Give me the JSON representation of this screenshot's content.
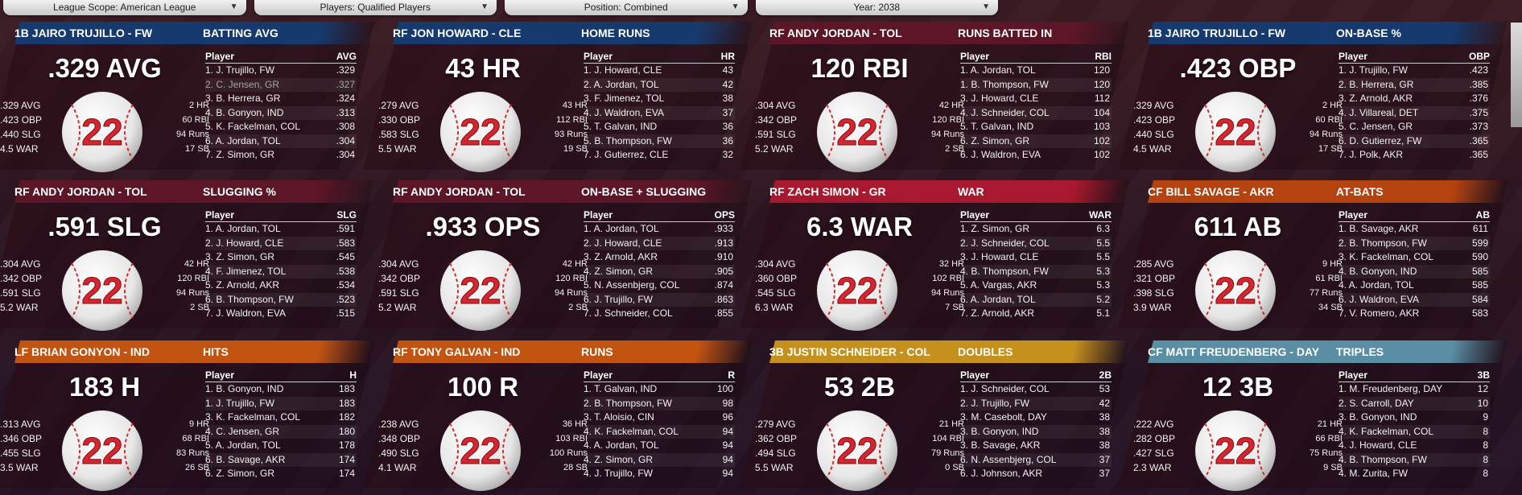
{
  "filters": [
    {
      "label": "League Scope: American League"
    },
    {
      "label": "Players: Qualified Players"
    },
    {
      "label": "Position: Combined"
    },
    {
      "label": "Year: 2038"
    }
  ],
  "panels": [
    {
      "player": "1B JAIRO TRUJILLO - FW",
      "category": "BATTING AVG",
      "header_color": "#163a6e",
      "big": ".329 AVG",
      "jersey": "22",
      "left_stats": [
        ".329 AVG",
        ".423 OBP",
        ".440 SLG",
        "4.5 WAR"
      ],
      "right_stats": [
        "2 HR",
        "60 RBI",
        "94 Runs",
        "17 SB"
      ],
      "col_player": "Player",
      "col_stat": "AVG",
      "rows": [
        {
          "name": "1. J. Trujillo, FW",
          "val": ".329"
        },
        {
          "name": "2. C. Jensen, GR",
          "val": ".327"
        },
        {
          "name": "3. B. Herrera, GR",
          "val": ".324"
        },
        {
          "name": "4. B. Gonyon, IND",
          "val": ".313"
        },
        {
          "name": "5. K. Fackelman, COL",
          "val": ".308"
        },
        {
          "name": "6. A. Jordan, TOL",
          "val": ".304"
        },
        {
          "name": "7. Z. Simon, GR",
          "val": ".304"
        }
      ]
    },
    {
      "player": "RF JON HOWARD - CLE",
      "category": "HOME RUNS",
      "header_color": "#163a6e",
      "big": "43 HR",
      "jersey": "22",
      "left_stats": [
        ".279 AVG",
        ".330 OBP",
        ".583 SLG",
        "5.5 WAR"
      ],
      "right_stats": [
        "43 HR",
        "112 RBI",
        "93 Runs",
        "19 SB"
      ],
      "col_player": "Player",
      "col_stat": "HR",
      "rows": [
        {
          "name": "1. J. Howard, CLE",
          "val": "43"
        },
        {
          "name": "2. A. Jordan, TOL",
          "val": "42"
        },
        {
          "name": "3. F. Jimenez, TOL",
          "val": "38"
        },
        {
          "name": "4. J. Waldron, EVA",
          "val": "37"
        },
        {
          "name": "5. T. Galvan, IND",
          "val": "36"
        },
        {
          "name": "5. B. Thompson, FW",
          "val": "36"
        },
        {
          "name": "7. J. Gutierrez, CLE",
          "val": "32"
        }
      ]
    },
    {
      "player": "RF ANDY JORDAN - TOL",
      "category": "RUNS BATTED IN",
      "header_color": "#5c1628",
      "big": "120 RBI",
      "jersey": "22",
      "left_stats": [
        ".304 AVG",
        ".342 OBP",
        ".591 SLG",
        "5.2 WAR"
      ],
      "right_stats": [
        "42 HR",
        "120 RBI",
        "94 Runs",
        "2 SB"
      ],
      "col_player": "Player",
      "col_stat": "RBI",
      "rows": [
        {
          "name": "1. A. Jordan, TOL",
          "val": "120"
        },
        {
          "name": "1. B. Thompson, FW",
          "val": "120"
        },
        {
          "name": "3. J. Howard, CLE",
          "val": "112"
        },
        {
          "name": "4. J. Schneider, COL",
          "val": "104"
        },
        {
          "name": "5. T. Galvan, IND",
          "val": "103"
        },
        {
          "name": "6. Z. Simon, GR",
          "val": "102"
        },
        {
          "name": "6. J. Waldron, EVA",
          "val": "102"
        }
      ]
    },
    {
      "player": "1B JAIRO TRUJILLO - FW",
      "category": "ON-BASE %",
      "header_color": "#163a6e",
      "big": ".423 OBP",
      "jersey": "22",
      "left_stats": [
        ".329 AVG",
        ".423 OBP",
        ".440 SLG",
        "4.5 WAR"
      ],
      "right_stats": [
        "2 HR",
        "60 RBI",
        "94 Runs",
        "17 SB"
      ],
      "col_player": "Player",
      "col_stat": "OBP",
      "rows": [
        {
          "name": "1. J. Trujillo, FW",
          "val": ".423"
        },
        {
          "name": "2. B. Herrera, GR",
          "val": ".385"
        },
        {
          "name": "3. Z. Arnold, AKR",
          "val": ".376"
        },
        {
          "name": "4. J. Villareal, DET",
          "val": ".375"
        },
        {
          "name": "5. C. Jensen, GR",
          "val": ".373"
        },
        {
          "name": "6. D. Gutierrez, FW",
          "val": ".365"
        },
        {
          "name": "7. J. Polk, AKR",
          "val": ".365"
        }
      ]
    },
    {
      "player": "RF ANDY JORDAN - TOL",
      "category": "SLUGGING %",
      "header_color": "#5c1628",
      "big": ".591 SLG",
      "jersey": "22",
      "left_stats": [
        ".304 AVG",
        ".342 OBP",
        ".591 SLG",
        "5.2 WAR"
      ],
      "right_stats": [
        "42 HR",
        "120 RBI",
        "94 Runs",
        "2 SB"
      ],
      "col_player": "Player",
      "col_stat": "SLG",
      "rows": [
        {
          "name": "1. A. Jordan, TOL",
          "val": ".591"
        },
        {
          "name": "2. J. Howard, CLE",
          "val": ".583"
        },
        {
          "name": "3. Z. Simon, GR",
          "val": ".545"
        },
        {
          "name": "4. F. Jimenez, TOL",
          "val": ".538"
        },
        {
          "name": "5. Z. Arnold, AKR",
          "val": ".534"
        },
        {
          "name": "6. B. Thompson, FW",
          "val": ".523"
        },
        {
          "name": "7. J. Waldron, EVA",
          "val": ".515"
        }
      ]
    },
    {
      "player": "RF ANDY JORDAN - TOL",
      "category": "ON-BASE + SLUGGING",
      "header_color": "#5c1628",
      "big": ".933 OPS",
      "jersey": "22",
      "left_stats": [
        ".304 AVG",
        ".342 OBP",
        ".591 SLG",
        "5.2 WAR"
      ],
      "right_stats": [
        "42 HR",
        "120 RBI",
        "94 Runs",
        "2 SB"
      ],
      "col_player": "Player",
      "col_stat": "OPS",
      "rows": [
        {
          "name": "1. A. Jordan, TOL",
          "val": ".933"
        },
        {
          "name": "2. J. Howard, CLE",
          "val": ".913"
        },
        {
          "name": "3. Z. Arnold, AKR",
          "val": ".910"
        },
        {
          "name": "4. Z. Simon, GR",
          "val": ".905"
        },
        {
          "name": "5. N. Assenbjerg, COL",
          "val": ".874"
        },
        {
          "name": "6. J. Trujillo, FW",
          "val": ".863"
        },
        {
          "name": "7. J. Schneider, COL",
          "val": ".855"
        }
      ]
    },
    {
      "player": "RF ZACH SIMON - GR",
      "category": "WAR",
      "header_color": "#a8182e",
      "big": "6.3 WAR",
      "jersey": "22",
      "left_stats": [
        ".304 AVG",
        ".360 OBP",
        ".545 SLG",
        "6.3 WAR"
      ],
      "right_stats": [
        "32 HR",
        "102 RBI",
        "94 Runs",
        "7 SB"
      ],
      "col_player": "Player",
      "col_stat": "WAR",
      "rows": [
        {
          "name": "1. Z. Simon, GR",
          "val": "6.3"
        },
        {
          "name": "2. J. Schneider, COL",
          "val": "5.5"
        },
        {
          "name": "3. J. Howard, CLE",
          "val": "5.5"
        },
        {
          "name": "4. B. Thompson, FW",
          "val": "5.3"
        },
        {
          "name": "5. A. Vargas, AKR",
          "val": "5.3"
        },
        {
          "name": "6. A. Jordan, TOL",
          "val": "5.2"
        },
        {
          "name": "7. Z. Arnold, AKR",
          "val": "5.1"
        }
      ]
    },
    {
      "player": "CF BILL SAVAGE - AKR",
      "category": "AT-BATS",
      "header_color": "#b5430f",
      "big": "611 AB",
      "jersey": "22",
      "left_stats": [
        ".285 AVG",
        ".321 OBP",
        ".398 SLG",
        "3.9 WAR"
      ],
      "right_stats": [
        "9 HR",
        "61 RBI",
        "77 Runs",
        "34 SB"
      ],
      "col_player": "Player",
      "col_stat": "AB",
      "rows": [
        {
          "name": "1. B. Savage, AKR",
          "val": "611"
        },
        {
          "name": "2. B. Thompson, FW",
          "val": "599"
        },
        {
          "name": "3. K. Fackelman, COL",
          "val": "590"
        },
        {
          "name": "4. B. Gonyon, IND",
          "val": "585"
        },
        {
          "name": "4. A. Jordan, TOL",
          "val": "585"
        },
        {
          "name": "6. J. Waldron, EVA",
          "val": "584"
        },
        {
          "name": "7. V. Romero, AKR",
          "val": "583"
        }
      ]
    },
    {
      "player": "LF BRIAN GONYON - IND",
      "category": "HITS",
      "header_color": "#c25412",
      "big": "183 H",
      "jersey": "22",
      "left_stats": [
        ".313 AVG",
        ".346 OBP",
        ".455 SLG",
        "3.5 WAR"
      ],
      "right_stats": [
        "9 HR",
        "68 RBI",
        "83 Runs",
        "26 SB"
      ],
      "col_player": "Player",
      "col_stat": "H",
      "rows": [
        {
          "name": "1. B. Gonyon, IND",
          "val": "183"
        },
        {
          "name": "1. J. Trujillo, FW",
          "val": "183"
        },
        {
          "name": "3. K. Fackelman, COL",
          "val": "182"
        },
        {
          "name": "4. C. Jensen, GR",
          "val": "180"
        },
        {
          "name": "5. A. Jordan, TOL",
          "val": "178"
        },
        {
          "name": "6. B. Savage, AKR",
          "val": "174"
        },
        {
          "name": "6. Z. Simon, GR",
          "val": "174"
        }
      ]
    },
    {
      "player": "RF TONY GALVAN - IND",
      "category": "RUNS",
      "header_color": "#c25412",
      "big": "100 R",
      "jersey": "22",
      "left_stats": [
        ".238 AVG",
        ".348 OBP",
        ".490 SLG",
        "4.1 WAR"
      ],
      "right_stats": [
        "36 HR",
        "103 RBI",
        "100 Runs",
        "28 SB"
      ],
      "col_player": "Player",
      "col_stat": "R",
      "rows": [
        {
          "name": "1. T. Galvan, IND",
          "val": "100"
        },
        {
          "name": "2. B. Thompson, FW",
          "val": "98"
        },
        {
          "name": "3. T. Aloisio, CIN",
          "val": "96"
        },
        {
          "name": "4. K. Fackelman, COL",
          "val": "94"
        },
        {
          "name": "4. A. Jordan, TOL",
          "val": "94"
        },
        {
          "name": "4. Z. Simon, GR",
          "val": "94"
        },
        {
          "name": "4. J. Trujillo, FW",
          "val": "94"
        }
      ]
    },
    {
      "player": "3B JUSTIN SCHNEIDER - COL",
      "category": "DOUBLES",
      "header_color": "#c6901c",
      "big": "53 2B",
      "jersey": "22",
      "left_stats": [
        ".279 AVG",
        ".362 OBP",
        ".494 SLG",
        "5.5 WAR"
      ],
      "right_stats": [
        "21 HR",
        "104 RBI",
        "79 Runs",
        "0 SB"
      ],
      "col_player": "Player",
      "col_stat": "2B",
      "rows": [
        {
          "name": "1. J. Schneider, COL",
          "val": "53"
        },
        {
          "name": "2. J. Trujillo, FW",
          "val": "42"
        },
        {
          "name": "3. M. Casebolt, DAY",
          "val": "38"
        },
        {
          "name": "3. B. Gonyon, IND",
          "val": "38"
        },
        {
          "name": "3. B. Savage, AKR",
          "val": "38"
        },
        {
          "name": "6. N. Assenbjerg, COL",
          "val": "37"
        },
        {
          "name": "6. J. Johnson, AKR",
          "val": "37"
        }
      ]
    },
    {
      "player": "CF MATT FREUDENBERG - DAY",
      "category": "TRIPLES",
      "header_color": "#5a8ea4",
      "big": "12 3B",
      "jersey": "22",
      "left_stats": [
        ".222 AVG",
        ".282 OBP",
        ".427 SLG",
        "2.3 WAR"
      ],
      "right_stats": [
        "21 HR",
        "66 RBI",
        "75 Runs",
        "9 SB"
      ],
      "col_player": "Player",
      "col_stat": "3B",
      "rows": [
        {
          "name": "1. M. Freudenberg, DAY",
          "val": "12"
        },
        {
          "name": "2. S. Carroll, DAY",
          "val": "10"
        },
        {
          "name": "3. B. Gonyon, IND",
          "val": "9"
        },
        {
          "name": "4. K. Fackelman, COL",
          "val": "8"
        },
        {
          "name": "4. J. Howard, CLE",
          "val": "8"
        },
        {
          "name": "4. B. Thompson, FW",
          "val": "8"
        },
        {
          "name": "4. M. Zurita, FW",
          "val": "8"
        }
      ]
    }
  ]
}
